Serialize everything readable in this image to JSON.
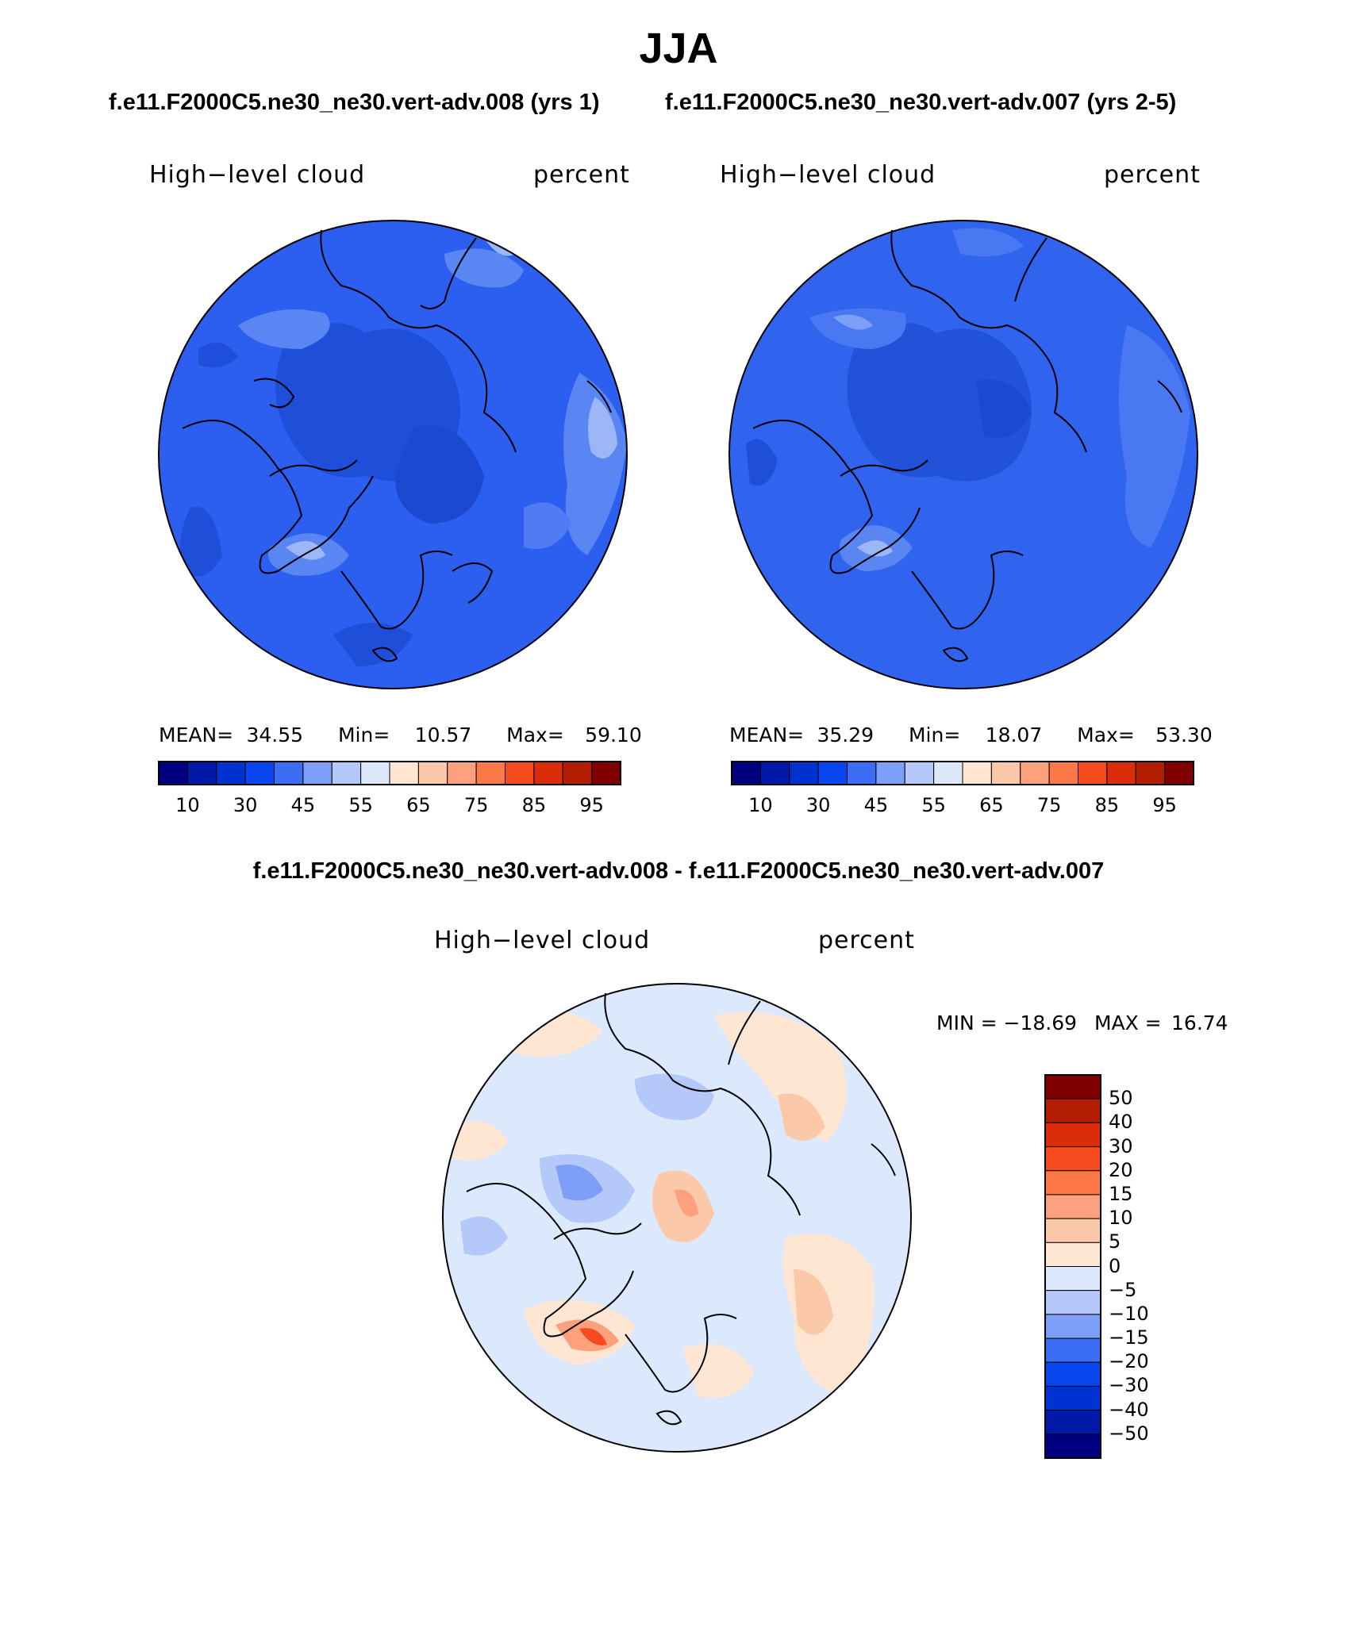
{
  "figure": {
    "title": "JJA",
    "case1_heading": "f.e11.F2000C5.ne30_ne30.vert-adv.008 (yrs 1)",
    "case2_heading": "f.e11.F2000C5.ne30_ne30.vert-adv.007 (yrs 2-5)",
    "diff_heading": "f.e11.F2000C5.ne30_ne30.vert-adv.008 - f.e11.F2000C5.ne30_ne30.vert-adv.007"
  },
  "panels": [
    {
      "variable": "High−level cloud",
      "units": "percent",
      "mean_label": "MEAN=",
      "mean": "34.55",
      "min_label": "Min=",
      "min": "10.57",
      "max_label": "Max=",
      "max": "59.10"
    },
    {
      "variable": "High−level cloud",
      "units": "percent",
      "mean_label": "MEAN=",
      "mean": "35.29",
      "min_label": "Min=",
      "min": "18.07",
      "max_label": "Max=",
      "max": "53.30"
    }
  ],
  "abs_colorbar": {
    "colors": [
      "#000080",
      "#0019a8",
      "#0032d2",
      "#0a46f0",
      "#3c6ef5",
      "#7d9ff8",
      "#b4c8fa",
      "#dce8fc",
      "#ffe6d2",
      "#fcc8aa",
      "#fca07d",
      "#fc7846",
      "#f54b1e",
      "#dc2d0a",
      "#b41e00",
      "#800000"
    ],
    "labels": [
      "10",
      "30",
      "45",
      "55",
      "65",
      "75",
      "85",
      "95"
    ]
  },
  "diff_panel": {
    "variable": "High−level cloud",
    "units": "percent",
    "min_label": "MIN =",
    "min": "−18.69",
    "max_label": "MAX =",
    "max": "16.74"
  },
  "diff_colorbar": {
    "colors_top_to_bottom": [
      "#800000",
      "#b41e00",
      "#dc2d0a",
      "#f54b1e",
      "#fc7846",
      "#fca07d",
      "#fcc8aa",
      "#ffe6d2",
      "#dce8fc",
      "#b4c8fa",
      "#7d9ff8",
      "#3c6ef5",
      "#0a46f0",
      "#0032d2",
      "#0019a8",
      "#000080"
    ],
    "labels": [
      "50",
      "40",
      "30",
      "20",
      "15",
      "10",
      "5",
      "0",
      "−5",
      "−10",
      "−15",
      "−20",
      "−30",
      "−40",
      "−50"
    ]
  },
  "map_fill": {
    "panel1_base": "#2c5ff0",
    "panel2_base": "#3064ee",
    "diff_base": "#dce8fc",
    "coastline": "#000000"
  }
}
